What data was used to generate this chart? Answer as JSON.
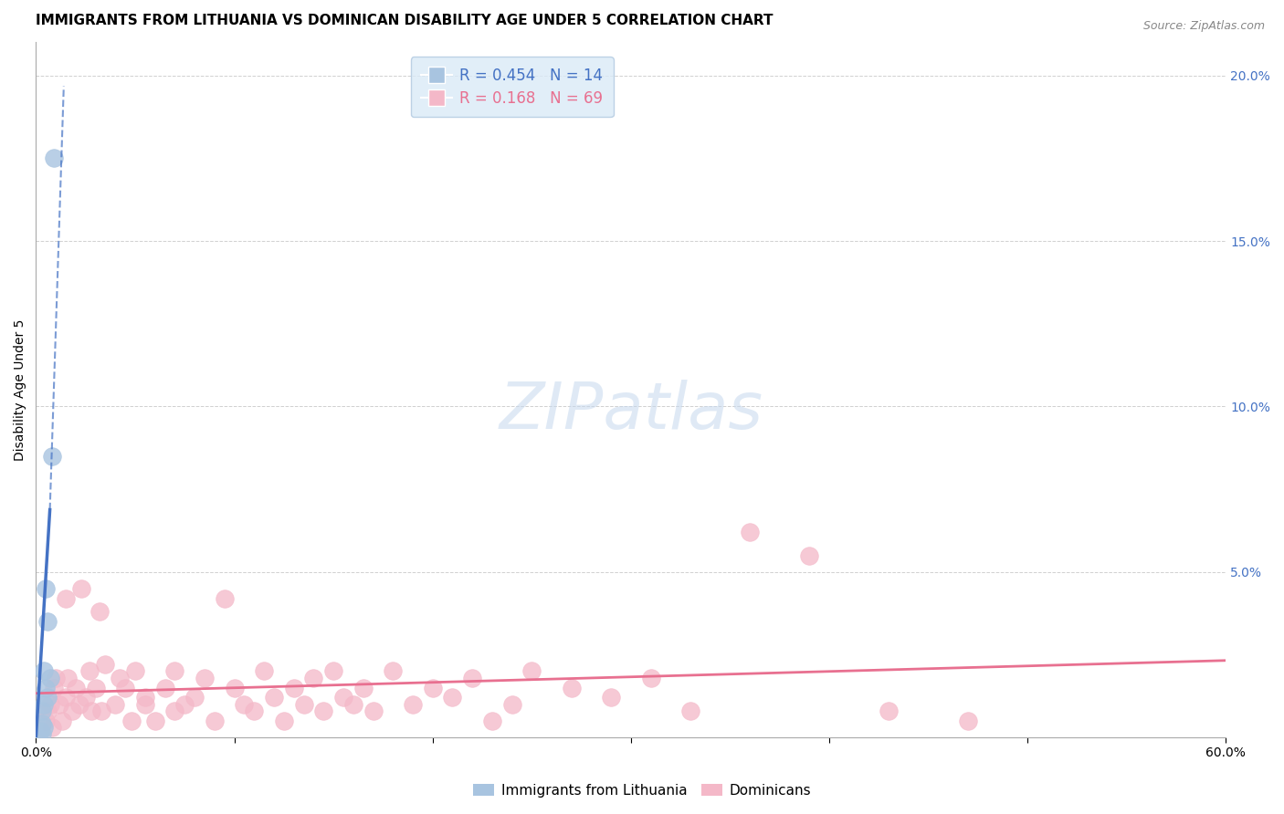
{
  "title": "IMMIGRANTS FROM LITHUANIA VS DOMINICAN DISABILITY AGE UNDER 5 CORRELATION CHART",
  "source": "Source: ZipAtlas.com",
  "ylabel_left": "Disability Age Under 5",
  "watermark": "ZIPatlas",
  "blue_label": "Immigrants from Lithuania",
  "pink_label": "Dominicans",
  "blue_R": 0.454,
  "blue_N": 14,
  "pink_R": 0.168,
  "pink_N": 69,
  "xlim": [
    0.0,
    0.6
  ],
  "ylim": [
    0.0,
    0.21
  ],
  "right_yticks": [
    0.0,
    0.05,
    0.1,
    0.15,
    0.2
  ],
  "right_yticklabels": [
    "",
    "5.0%",
    "10.0%",
    "15.0%",
    "20.0%"
  ],
  "blue_scatter_x": [
    0.002,
    0.003,
    0.003,
    0.003,
    0.004,
    0.004,
    0.004,
    0.005,
    0.005,
    0.006,
    0.006,
    0.007,
    0.008,
    0.009
  ],
  "blue_scatter_y": [
    0.002,
    0.001,
    0.004,
    0.008,
    0.003,
    0.01,
    0.02,
    0.015,
    0.045,
    0.012,
    0.035,
    0.018,
    0.085,
    0.175
  ],
  "pink_scatter_x": [
    0.005,
    0.006,
    0.007,
    0.008,
    0.009,
    0.01,
    0.012,
    0.013,
    0.015,
    0.015,
    0.016,
    0.018,
    0.02,
    0.022,
    0.023,
    0.025,
    0.027,
    0.028,
    0.03,
    0.032,
    0.033,
    0.035,
    0.04,
    0.042,
    0.045,
    0.048,
    0.05,
    0.055,
    0.055,
    0.06,
    0.065,
    0.07,
    0.07,
    0.075,
    0.08,
    0.085,
    0.09,
    0.095,
    0.1,
    0.105,
    0.11,
    0.115,
    0.12,
    0.125,
    0.13,
    0.135,
    0.14,
    0.145,
    0.15,
    0.155,
    0.16,
    0.165,
    0.17,
    0.18,
    0.19,
    0.2,
    0.21,
    0.22,
    0.23,
    0.24,
    0.25,
    0.27,
    0.29,
    0.31,
    0.33,
    0.36,
    0.39,
    0.43,
    0.47
  ],
  "pink_scatter_y": [
    0.005,
    0.008,
    0.01,
    0.003,
    0.015,
    0.018,
    0.01,
    0.005,
    0.042,
    0.012,
    0.018,
    0.008,
    0.015,
    0.01,
    0.045,
    0.012,
    0.02,
    0.008,
    0.015,
    0.038,
    0.008,
    0.022,
    0.01,
    0.018,
    0.015,
    0.005,
    0.02,
    0.012,
    0.01,
    0.005,
    0.015,
    0.008,
    0.02,
    0.01,
    0.012,
    0.018,
    0.005,
    0.042,
    0.015,
    0.01,
    0.008,
    0.02,
    0.012,
    0.005,
    0.015,
    0.01,
    0.018,
    0.008,
    0.02,
    0.012,
    0.01,
    0.015,
    0.008,
    0.02,
    0.01,
    0.015,
    0.012,
    0.018,
    0.005,
    0.01,
    0.02,
    0.015,
    0.012,
    0.018,
    0.008,
    0.062,
    0.055,
    0.008,
    0.005
  ],
  "blue_color": "#a8c4e0",
  "blue_line_color": "#4472c4",
  "pink_color": "#f4b8c8",
  "pink_line_color": "#e87090",
  "legend_box_color": "#daeaf7",
  "legend_text_color_blue": "#4472c4",
  "legend_text_color_pink": "#e87090",
  "grid_color": "#d0d0d0",
  "right_axis_color": "#4472c4",
  "background_color": "#ffffff",
  "title_fontsize": 11,
  "axis_label_fontsize": 10,
  "tick_fontsize": 10,
  "legend_fontsize": 12,
  "watermark_fontsize": 52
}
